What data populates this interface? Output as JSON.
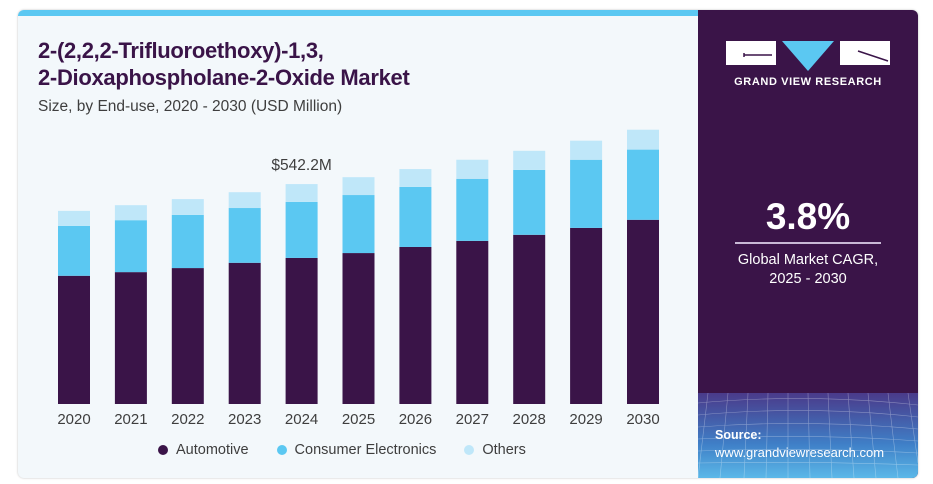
{
  "header": {
    "title_line1": "2-(2,2,2-Trifluoroethoxy)-1,3,",
    "title_line2": "2-Dioxaphospholane-2-Oxide Market",
    "subtitle": "Size, by End-use, 2020 - 2030 (USD Million)"
  },
  "brand": {
    "name": "GRAND VIEW RESEARCH",
    "logo_icon": "gvr-logo-icon"
  },
  "stats": {
    "cagr_value": "3.8%",
    "cagr_label_line1": "Global Market CAGR,",
    "cagr_label_line2": "2025 - 2030"
  },
  "source": {
    "label": "Source:",
    "url": "www.grandviewresearch.com"
  },
  "colors": {
    "automotive": "#3a1448",
    "consumer_electronics": "#5bc8f2",
    "others": "#bfe7f9",
    "accent": "#5bc8f2",
    "panel": "#3a1448"
  },
  "chart_data": {
    "type": "bar",
    "stacked": true,
    "title": "2-(2,2,2-Trifluoroethoxy)-1,3, 2-Dioxaphospholane-2-Oxide Market",
    "subtitle": "Size, by End-use, 2020 - 2030 (USD Million)",
    "xlabel": "",
    "ylabel": "",
    "ylim": [
      0,
      700
    ],
    "grid": false,
    "legend_position": "bottom",
    "categories": [
      "2020",
      "2021",
      "2022",
      "2023",
      "2024",
      "2025",
      "2026",
      "2027",
      "2028",
      "2029",
      "2030"
    ],
    "series": [
      {
        "name": "Automotive",
        "values": [
          316,
          325,
          335,
          348,
          360,
          372,
          387,
          402,
          417,
          434,
          454
        ]
      },
      {
        "name": "Consumer Electronics",
        "values": [
          123,
          128,
          131,
          135,
          138,
          143,
          148,
          153,
          160,
          168,
          173
        ]
      },
      {
        "name": "Others",
        "values": [
          37,
          37,
          39,
          39,
          44,
          44,
          44,
          47,
          47,
          47,
          49
        ]
      }
    ],
    "annotations": [
      {
        "category": "2024",
        "text": "$542.2M"
      }
    ]
  }
}
